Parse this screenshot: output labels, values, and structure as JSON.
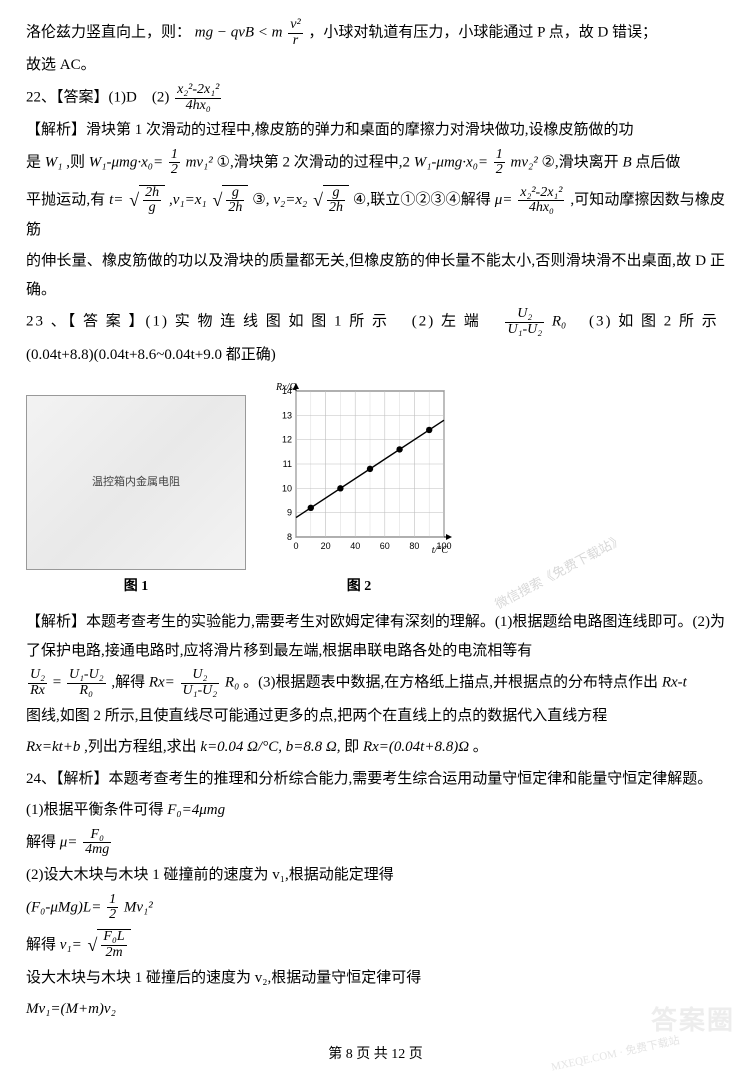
{
  "p1_a": "洛伦兹力竖直向上，则：",
  "p1_math": "mg − qvB < m",
  "p1_frac_num": "v²",
  "p1_frac_den": "r",
  "p1_b": "，小球对轨道有压力，小球能通过 P 点，故 D 错误；",
  "p2": "故选 AC。",
  "q22_head": "22、【答案】(1)D　(2)",
  "q22_frac_num": "x₂²-2x₁²",
  "q22_frac_den": "4hx₀",
  "q22_ex1": "【解析】滑块第 1 次滑动的过程中,橡皮筋的弹力和桌面的摩擦力对滑块做功,设橡皮筋做的功",
  "q22_ex2a": "是 ",
  "q22_W1": "W₁",
  "q22_ex2b": ",则 ",
  "q22_eq1": "W₁-μmg·x₀=",
  "q22_half_num1": "1",
  "q22_half_den1": "2",
  "q22_mv1": "mv₁²",
  "q22_circ1": "①,滑块第 2 次滑动的过程中,2",
  "q22_eq2": "W₁-μmg·x₀=",
  "q22_mv2": "mv₂²",
  "q22_circ2": "②,滑块离开 ",
  "q22_B": "B",
  "q22_circ2b": " 点后做",
  "q22_ex3a": "平抛运动,有 ",
  "q22_t": "t=",
  "q22_r1_num": "2h",
  "q22_r1_den": "g",
  "q22_v1eq": ",v₁=x₁",
  "q22_r2_num": "g",
  "q22_r2_den": "2h",
  "q22_c3": "③,",
  "q22_v2eq": "v₂=x₂",
  "q22_c4": "④,联立①②③④解得 ",
  "q22_mu": "μ=",
  "q22_mufrac_num": "x₂²-2x₁²",
  "q22_mufrac_den": "4hx₀",
  "q22_ex3b": ",可知动摩擦因数与橡皮筋",
  "q22_ex4": "的伸长量、橡皮筋做的功以及滑块的质量都无关,但橡皮筋的伸长量不能太小,否则滑块滑不出桌面,故 D 正确。",
  "q23_a": "23 、【 答 案 】(1) 实 物 连 线 图 如 图 1 所 示　 (2) 左 端　",
  "q23_frac1_num": "U₂",
  "q23_frac1_den": "U₁-U₂",
  "q23_R0a": "R₀",
  "q23_b": "　(3) 如 图 2 所 示",
  "q23_c": "(0.04t+8.8)(0.04t+8.6~0.04t+9.0 都正确)",
  "fig1_label": "温控箱内金属电阻",
  "fig1_cap": "图 1",
  "fig2_cap": "图 2",
  "chart": {
    "type": "line",
    "x_label": "t/°C",
    "y_label": "Rx/Ω",
    "x_min": 0,
    "x_max": 100,
    "x_tick_step": 20,
    "y_min": 8,
    "y_max": 14,
    "y_tick_step": 1,
    "y_ticks": [
      8,
      9,
      10,
      11,
      12,
      13,
      14
    ],
    "x_ticks": [
      0,
      20,
      40,
      60,
      80,
      100
    ],
    "grid_color": "#bfbfbf",
    "axis_color": "#000000",
    "line_color": "#000000",
    "marker_color": "#000000",
    "background": "#ffffff",
    "points": [
      {
        "x": 10,
        "y": 9.2
      },
      {
        "x": 30,
        "y": 10.0
      },
      {
        "x": 50,
        "y": 10.8
      },
      {
        "x": 70,
        "y": 11.6
      },
      {
        "x": 90,
        "y": 12.4
      }
    ],
    "line": {
      "x1": 0,
      "y1": 8.8,
      "x2": 100,
      "y2": 12.8
    },
    "label_fontsize": 10,
    "tick_fontsize": 9,
    "marker_size": 3.2
  },
  "q23_ex1": "【解析】本题考查考生的实验能力,需要考生对欧姆定律有深刻的理解。(1)根据题给电路图连线即可。(2)为了保护电路,接通电路时,应将滑片移到最左端,根据串联电路各处的电流相等有",
  "q23_eqL_num": "U₂",
  "q23_eqL_den": "Rx",
  "q23_eq_eq": "=",
  "q23_eqR_num": "U₁-U₂",
  "q23_eqR_den": "R₀",
  "q23_ex2a": ",解得 ",
  "q23_Rx": "Rx=",
  "q23_rxfrac_num": "U₂",
  "q23_rxfrac_den": "U₁-U₂",
  "q23_R0b": "R₀",
  "q23_ex2b": "。(3)根据题表中数据,在方格纸上描点,并根据点的分布特点作出 ",
  "q23_Rxt": "Rx-t",
  "q23_ex3": "图线,如图 2 所示,且使直线尽可能通过更多的点,把两个在直线上的点的数据代入直线方程",
  "q23_ex4a": "Rx=kt+b",
  "q23_ex4b": ",列出方程组,求出 ",
  "q23_k": "k=0.04 Ω/°C,",
  "q23_bval": "b=8.8 Ω,",
  "q23_ex4c": "即 ",
  "q23_final": "Rx=(0.04t+8.8)Ω",
  "q23_ex4d": "。",
  "q24_ex1": "24、【解析】本题考查考生的推理和分析综合能力,需要考生综合运用动量守恒定律和能量守恒定律解题。",
  "q24_l1a": "(1)根据平衡条件可得 ",
  "q24_F0": "F₀=4μmg",
  "q24_l2a": "解得 ",
  "q24_mu": "μ=",
  "q24_mufr_num": "F₀",
  "q24_mufr_den": "4mg",
  "q24_l3": "(2)设大木块与木块 1 碰撞前的速度为 v₁,根据动能定理得",
  "q24_l4a": "(F₀-μMg)L=",
  "q24_half_num": "1",
  "q24_half_den": "2",
  "q24_Mv1": "Mv₁²",
  "q24_l5a": "解得 ",
  "q24_v1": "v₁=",
  "q24_v1rad_num": "F₀L",
  "q24_v1rad_den": "2m",
  "q24_l6": "设大木块与木块 1 碰撞后的速度为 v₂,根据动量守恒定律可得",
  "q24_l7": "Mv₁=(M+m)v₂",
  "footer": "第 8 页 共 12 页",
  "wm1": "微信搜索《免费下载站》",
  "wm2": "答案圈",
  "wm3": "MXEQE.COM · 免费下载站"
}
